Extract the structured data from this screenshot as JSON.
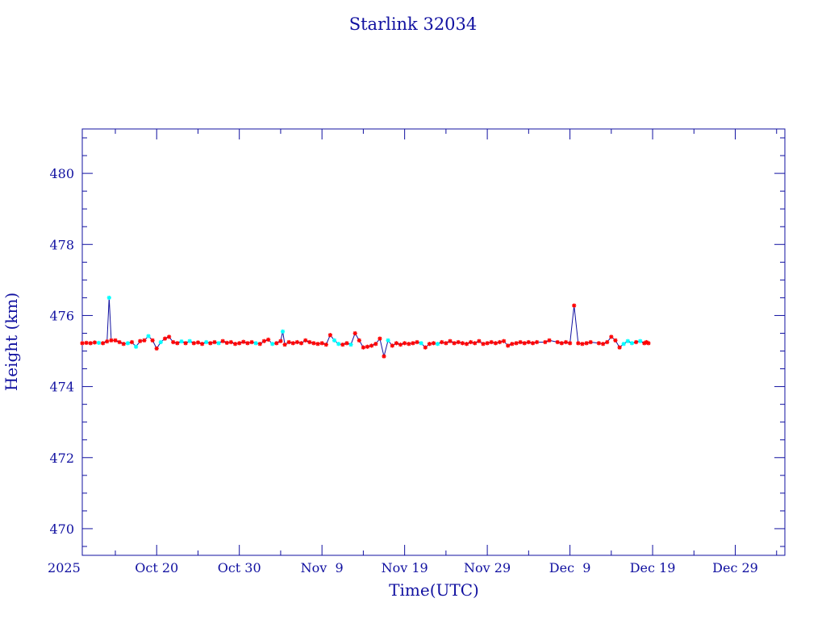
{
  "chart_data": {
    "type": "line",
    "title": "Starlink 32034",
    "xlabel": "Time(UTC)",
    "ylabel": "Height (km)",
    "xlim": [
      "2025-10-11",
      "2026-01-04"
    ],
    "ylim": [
      469.25,
      481.25
    ],
    "grid": false,
    "colors": {
      "axes": "#1010a0",
      "line": "#1010a0",
      "marker_primary": "#ff0000",
      "marker_secondary": "#00ffff"
    },
    "y_ticks": [
      {
        "value": 470,
        "label": "470"
      },
      {
        "value": 472,
        "label": "472"
      },
      {
        "value": 474,
        "label": "474"
      },
      {
        "value": 476,
        "label": "476"
      },
      {
        "value": 478,
        "label": "478"
      },
      {
        "value": 480,
        "label": "480"
      }
    ],
    "x_ticks": [
      {
        "value": "2025-10-10",
        "label": "2025"
      },
      {
        "value": "2025-10-20",
        "label": "Oct 20"
      },
      {
        "value": "2025-10-30",
        "label": "Oct 30"
      },
      {
        "value": "2025-11-09",
        "label": "Nov  9"
      },
      {
        "value": "2025-11-19",
        "label": "Nov 19"
      },
      {
        "value": "2025-11-29",
        "label": "Nov 29"
      },
      {
        "value": "2025-12-09",
        "label": "Dec  9"
      },
      {
        "value": "2025-12-19",
        "label": "Dec 19"
      },
      {
        "value": "2025-12-29",
        "label": "Dec 29"
      }
    ],
    "series": [
      {
        "points": [
          [
            "2025-10-11 00:00",
            475.22,
            "r"
          ],
          [
            "2025-10-11 12:00",
            475.23,
            "r"
          ],
          [
            "2025-10-12 00:00",
            475.22,
            "r"
          ],
          [
            "2025-10-12 12:00",
            475.24,
            "r"
          ],
          [
            "2025-10-13 00:00",
            475.23,
            "c"
          ],
          [
            "2025-10-13 12:00",
            475.22,
            "r"
          ],
          [
            "2025-10-14 00:00",
            475.27,
            "r"
          ],
          [
            "2025-10-14 06:00",
            476.5,
            "c"
          ],
          [
            "2025-10-14 12:00",
            475.3,
            "r"
          ],
          [
            "2025-10-15 00:00",
            475.3,
            "r"
          ],
          [
            "2025-10-15 12:00",
            475.25,
            "r"
          ],
          [
            "2025-10-16 00:00",
            475.2,
            "r"
          ],
          [
            "2025-10-16 12:00",
            475.22,
            "c"
          ],
          [
            "2025-10-17 00:00",
            475.25,
            "r"
          ],
          [
            "2025-10-17 12:00",
            475.12,
            "c"
          ],
          [
            "2025-10-18 00:00",
            475.28,
            "r"
          ],
          [
            "2025-10-18 12:00",
            475.3,
            "r"
          ],
          [
            "2025-10-19 00:00",
            475.42,
            "c"
          ],
          [
            "2025-10-19 12:00",
            475.3,
            "r"
          ],
          [
            "2025-10-20 00:00",
            475.07,
            "r"
          ],
          [
            "2025-10-20 12:00",
            475.25,
            "c"
          ],
          [
            "2025-10-21 00:00",
            475.35,
            "r"
          ],
          [
            "2025-10-21 12:00",
            475.4,
            "r"
          ],
          [
            "2025-10-22 00:00",
            475.25,
            "r"
          ],
          [
            "2025-10-22 12:00",
            475.22,
            "r"
          ],
          [
            "2025-10-23 00:00",
            475.27,
            "c"
          ],
          [
            "2025-10-23 12:00",
            475.22,
            "r"
          ],
          [
            "2025-10-24 00:00",
            475.28,
            "c"
          ],
          [
            "2025-10-24 12:00",
            475.22,
            "r"
          ],
          [
            "2025-10-25 00:00",
            475.24,
            "r"
          ],
          [
            "2025-10-25 12:00",
            475.2,
            "r"
          ],
          [
            "2025-10-26 00:00",
            475.25,
            "c"
          ],
          [
            "2025-10-26 12:00",
            475.22,
            "r"
          ],
          [
            "2025-10-27 00:00",
            475.25,
            "r"
          ],
          [
            "2025-10-27 12:00",
            475.22,
            "c"
          ],
          [
            "2025-10-28 00:00",
            475.28,
            "r"
          ],
          [
            "2025-10-28 12:00",
            475.23,
            "r"
          ],
          [
            "2025-10-29 00:00",
            475.25,
            "r"
          ],
          [
            "2025-10-29 12:00",
            475.2,
            "r"
          ],
          [
            "2025-10-30 00:00",
            475.22,
            "r"
          ],
          [
            "2025-10-30 12:00",
            475.26,
            "r"
          ],
          [
            "2025-10-31 00:00",
            475.22,
            "r"
          ],
          [
            "2025-10-31 12:00",
            475.25,
            "r"
          ],
          [
            "2025-11-01 00:00",
            475.22,
            "c"
          ],
          [
            "2025-11-01 12:00",
            475.2,
            "r"
          ],
          [
            "2025-11-02 00:00",
            475.28,
            "r"
          ],
          [
            "2025-11-02 12:00",
            475.32,
            "r"
          ],
          [
            "2025-11-03 00:00",
            475.2,
            "c"
          ],
          [
            "2025-11-03 12:00",
            475.22,
            "r"
          ],
          [
            "2025-11-04 00:00",
            475.28,
            "r"
          ],
          [
            "2025-11-04 06:00",
            475.55,
            "c"
          ],
          [
            "2025-11-04 12:00",
            475.18,
            "r"
          ],
          [
            "2025-11-05 00:00",
            475.25,
            "r"
          ],
          [
            "2025-11-05 12:00",
            475.22,
            "r"
          ],
          [
            "2025-11-06 00:00",
            475.25,
            "r"
          ],
          [
            "2025-11-06 12:00",
            475.22,
            "r"
          ],
          [
            "2025-11-07 00:00",
            475.3,
            "r"
          ],
          [
            "2025-11-07 12:00",
            475.25,
            "r"
          ],
          [
            "2025-11-08 00:00",
            475.22,
            "r"
          ],
          [
            "2025-11-08 12:00",
            475.2,
            "r"
          ],
          [
            "2025-11-09 00:00",
            475.22,
            "r"
          ],
          [
            "2025-11-09 12:00",
            475.18,
            "r"
          ],
          [
            "2025-11-10 00:00",
            475.45,
            "r"
          ],
          [
            "2025-11-10 12:00",
            475.3,
            "c"
          ],
          [
            "2025-11-11 00:00",
            475.2,
            "c"
          ],
          [
            "2025-11-11 12:00",
            475.18,
            "r"
          ],
          [
            "2025-11-12 00:00",
            475.22,
            "r"
          ],
          [
            "2025-11-12 12:00",
            475.18,
            "c"
          ],
          [
            "2025-11-13 00:00",
            475.5,
            "r"
          ],
          [
            "2025-11-13 12:00",
            475.3,
            "r"
          ],
          [
            "2025-11-14 00:00",
            475.1,
            "r"
          ],
          [
            "2025-11-14 12:00",
            475.12,
            "r"
          ],
          [
            "2025-11-15 00:00",
            475.15,
            "r"
          ],
          [
            "2025-11-15 12:00",
            475.2,
            "r"
          ],
          [
            "2025-11-16 00:00",
            475.35,
            "r"
          ],
          [
            "2025-11-16 12:00",
            474.85,
            "r"
          ],
          [
            "2025-11-17 00:00",
            475.3,
            "c"
          ],
          [
            "2025-11-17 12:00",
            475.15,
            "r"
          ],
          [
            "2025-11-18 00:00",
            475.22,
            "r"
          ],
          [
            "2025-11-18 12:00",
            475.18,
            "r"
          ],
          [
            "2025-11-19 00:00",
            475.22,
            "r"
          ],
          [
            "2025-11-19 12:00",
            475.2,
            "r"
          ],
          [
            "2025-11-20 00:00",
            475.22,
            "r"
          ],
          [
            "2025-11-20 12:00",
            475.25,
            "r"
          ],
          [
            "2025-11-21 00:00",
            475.22,
            "c"
          ],
          [
            "2025-11-21 12:00",
            475.1,
            "r"
          ],
          [
            "2025-11-22 00:00",
            475.2,
            "r"
          ],
          [
            "2025-11-22 12:00",
            475.22,
            "r"
          ],
          [
            "2025-11-23 00:00",
            475.2,
            "c"
          ],
          [
            "2025-11-23 12:00",
            475.25,
            "r"
          ],
          [
            "2025-11-24 00:00",
            475.22,
            "r"
          ],
          [
            "2025-11-24 12:00",
            475.28,
            "r"
          ],
          [
            "2025-11-25 00:00",
            475.22,
            "r"
          ],
          [
            "2025-11-25 12:00",
            475.25,
            "r"
          ],
          [
            "2025-11-26 00:00",
            475.22,
            "r"
          ],
          [
            "2025-11-26 12:00",
            475.2,
            "r"
          ],
          [
            "2025-11-27 00:00",
            475.25,
            "r"
          ],
          [
            "2025-11-27 12:00",
            475.22,
            "r"
          ],
          [
            "2025-11-28 00:00",
            475.28,
            "r"
          ],
          [
            "2025-11-28 12:00",
            475.2,
            "r"
          ],
          [
            "2025-11-29 00:00",
            475.22,
            "r"
          ],
          [
            "2025-11-29 12:00",
            475.25,
            "r"
          ],
          [
            "2025-11-30 00:00",
            475.22,
            "r"
          ],
          [
            "2025-11-30 12:00",
            475.25,
            "r"
          ],
          [
            "2025-12-01 00:00",
            475.28,
            "r"
          ],
          [
            "2025-12-01 12:00",
            475.15,
            "r"
          ],
          [
            "2025-12-02 00:00",
            475.2,
            "r"
          ],
          [
            "2025-12-02 12:00",
            475.22,
            "r"
          ],
          [
            "2025-12-03 00:00",
            475.25,
            "r"
          ],
          [
            "2025-12-03 12:00",
            475.22,
            "r"
          ],
          [
            "2025-12-04 00:00",
            475.25,
            "r"
          ],
          [
            "2025-12-04 12:00",
            475.22,
            "r"
          ],
          [
            "2025-12-05 00:00",
            475.25,
            "r"
          ],
          [
            "2025-12-06 00:00",
            475.25,
            "r"
          ],
          [
            "2025-12-06 12:00",
            475.3,
            "r"
          ],
          [
            "2025-12-07 12:00",
            475.25,
            "r"
          ],
          [
            "2025-12-08 00:00",
            475.22,
            "r"
          ],
          [
            "2025-12-08 12:00",
            475.25,
            "r"
          ],
          [
            "2025-12-09 00:00",
            475.22,
            "r"
          ],
          [
            "2025-12-09 12:00",
            476.28,
            "r"
          ],
          [
            "2025-12-10 00:00",
            475.22,
            "r"
          ],
          [
            "2025-12-10 12:00",
            475.2,
            "r"
          ],
          [
            "2025-12-11 00:00",
            475.22,
            "r"
          ],
          [
            "2025-12-11 12:00",
            475.25,
            "r"
          ],
          [
            "2025-12-12 12:00",
            475.22,
            "r"
          ],
          [
            "2025-12-13 00:00",
            475.2,
            "r"
          ],
          [
            "2025-12-13 12:00",
            475.25,
            "r"
          ],
          [
            "2025-12-14 00:00",
            475.4,
            "r"
          ],
          [
            "2025-12-14 12:00",
            475.3,
            "r"
          ],
          [
            "2025-12-15 00:00",
            475.1,
            "r"
          ],
          [
            "2025-12-15 12:00",
            475.2,
            "c"
          ],
          [
            "2025-12-16 00:00",
            475.28,
            "c"
          ],
          [
            "2025-12-16 12:00",
            475.22,
            "c"
          ],
          [
            "2025-12-17 00:00",
            475.25,
            "r"
          ],
          [
            "2025-12-17 12:00",
            475.28,
            "c"
          ],
          [
            "2025-12-18 00:00",
            475.22,
            "r"
          ],
          [
            "2025-12-18 06:00",
            475.25,
            "r"
          ],
          [
            "2025-12-18 12:00",
            475.22,
            "r"
          ]
        ]
      }
    ]
  }
}
